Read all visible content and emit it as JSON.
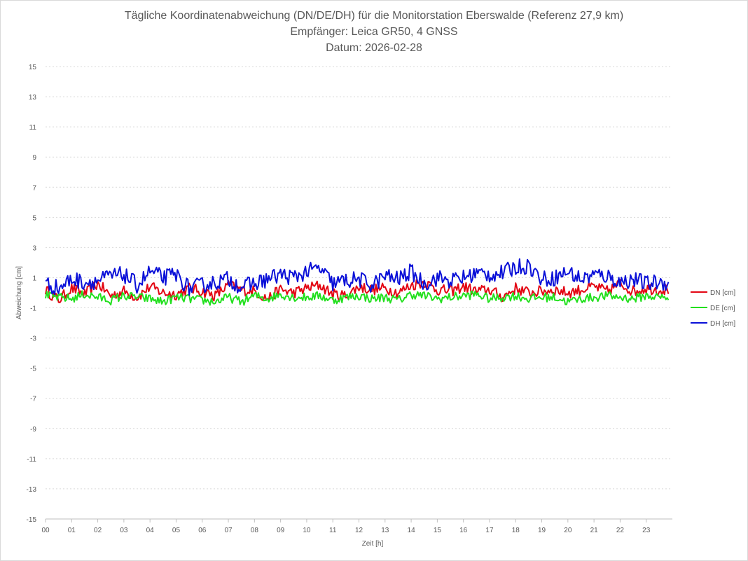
{
  "chart_data": {
    "type": "line",
    "title_lines": [
      "Tägliche Koordinatenabweichung (DN/DE/DH) für die Monitorstation Eberswalde (Referenz 27,9 km)",
      "Empfänger: Leica GR50, 4 GNSS",
      "Datum: 2026-02-28"
    ],
    "xlabel": "Zeit [h]",
    "ylabel": "Abweichung [cm]",
    "xlim": [
      0,
      24
    ],
    "ylim": [
      -15,
      15
    ],
    "x_ticks": [
      "00",
      "01",
      "02",
      "03",
      "04",
      "05",
      "06",
      "07",
      "08",
      "09",
      "10",
      "11",
      "12",
      "13",
      "14",
      "15",
      "16",
      "17",
      "18",
      "19",
      "20",
      "21",
      "22",
      "23"
    ],
    "y_ticks": [
      15,
      13,
      11,
      9,
      7,
      5,
      3,
      1,
      -1,
      -3,
      -5,
      -7,
      -9,
      -11,
      -13,
      -15
    ],
    "y_tick_labels": [
      "15",
      "13",
      "11",
      "9",
      "7",
      "5",
      "3",
      "1",
      "-1",
      "-3",
      "-5",
      "-7",
      "-9",
      "-11",
      "-13",
      "-15"
    ],
    "grid": "horizontal dashed",
    "legend_position": "right",
    "samples_per_hour": 2,
    "series": [
      {
        "name": "DN [cm]",
        "color": "#e30613",
        "values": [
          0.2,
          -0.5,
          0.3,
          -0.1,
          0.6,
          -0.2,
          0.1,
          -0.3,
          0.4,
          0.0,
          -0.1,
          0.3,
          0.1,
          -0.2,
          0.5,
          0.2,
          0.1,
          -0.4,
          0.2,
          0.0,
          0.3,
          0.5,
          -0.1,
          -0.2,
          0.4,
          0.2,
          0.3,
          0.0,
          0.5,
          0.7,
          0.2,
          0.1,
          0.4,
          0.1,
          0.2,
          -0.3,
          0.3,
          0.0,
          0.1,
          0.2,
          0.0,
          0.2,
          0.4,
          0.1,
          0.6,
          0.1,
          0.3,
          0.2
        ]
      },
      {
        "name": "DE [cm]",
        "color": "#22e01e",
        "values": [
          -0.2,
          -0.3,
          -0.4,
          -0.1,
          -0.3,
          -0.5,
          -0.2,
          -0.3,
          -0.4,
          -0.6,
          -0.3,
          -0.4,
          -0.5,
          -0.6,
          -0.3,
          -0.6,
          -0.2,
          -0.4,
          -0.1,
          -0.3,
          -0.3,
          -0.2,
          -0.5,
          -0.3,
          -0.2,
          -0.4,
          -0.3,
          -0.5,
          -0.1,
          -0.2,
          -0.4,
          -0.3,
          -0.2,
          -0.1,
          -0.4,
          -0.3,
          -0.2,
          -0.4,
          -0.3,
          -0.3,
          -0.6,
          -0.4,
          -0.3,
          -0.2,
          -0.3,
          -0.4,
          -0.2,
          -0.3
        ]
      },
      {
        "name": "DH [cm]",
        "color": "#0a10d8",
        "values": [
          0.6,
          0.3,
          0.9,
          0.7,
          0.8,
          1.1,
          1.2,
          0.5,
          1.4,
          1.0,
          1.2,
          0.3,
          0.5,
          0.7,
          0.9,
          0.4,
          0.6,
          0.9,
          1.2,
          1.0,
          1.4,
          1.6,
          0.6,
          0.8,
          0.9,
          0.5,
          1.1,
          0.9,
          1.4,
          0.6,
          1.0,
          0.8,
          1.0,
          1.3,
          1.2,
          1.3,
          1.7,
          1.8,
          0.9,
          1.0,
          1.4,
          0.9,
          1.2,
          1.1,
          0.7,
          0.9,
          0.6,
          0.7
        ]
      }
    ]
  }
}
